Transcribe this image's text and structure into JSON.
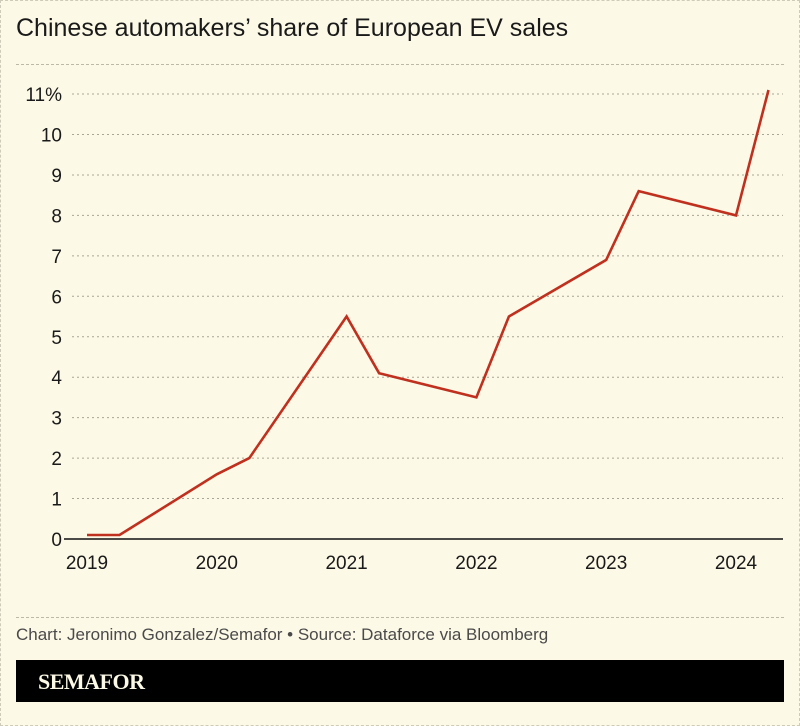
{
  "title": "Chinese automakers’ share of European EV sales",
  "credit": "Chart: Jeronimo Gonzalez/Semafor • Source: Dataforce via Bloomberg",
  "brand": "SEMAFOR",
  "colors": {
    "background": "#fcf9e6",
    "line": "#c0301f",
    "brand_bar": "#000000"
  },
  "chart_data": {
    "type": "line",
    "title": "Chinese automakers’ share of European EV sales",
    "xlabel": "",
    "ylabel": "",
    "x_ticks": [
      "2019",
      "2020",
      "2021",
      "2022",
      "2023",
      "2024"
    ],
    "y_ticks": [
      "0",
      "1",
      "2",
      "3",
      "4",
      "5",
      "6",
      "7",
      "8",
      "9",
      "10",
      "11%"
    ],
    "ylim": [
      0,
      11
    ],
    "xlim": [
      2019,
      2024.3
    ],
    "grid": true,
    "series": [
      {
        "x": [
          2019,
          2019.25,
          2020,
          2020.25,
          2021,
          2021.25,
          2022,
          2022.25,
          2023,
          2023.25,
          2024,
          2024.25
        ],
        "values": [
          0.1,
          0.1,
          1.6,
          2.0,
          5.5,
          4.1,
          3.5,
          5.5,
          6.9,
          8.6,
          8.0,
          11.1
        ]
      }
    ]
  }
}
